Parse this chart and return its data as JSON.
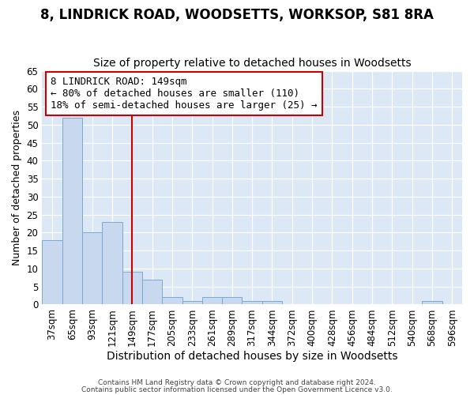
{
  "title1": "8, LINDRICK ROAD, WOODSETTS, WORKSOP, S81 8RA",
  "title2": "Size of property relative to detached houses in Woodsetts",
  "xlabel": "Distribution of detached houses by size in Woodsetts",
  "ylabel": "Number of detached properties",
  "categories": [
    "37sqm",
    "65sqm",
    "93sqm",
    "121sqm",
    "149sqm",
    "177sqm",
    "205sqm",
    "233sqm",
    "261sqm",
    "289sqm",
    "317sqm",
    "344sqm",
    "372sqm",
    "400sqm",
    "428sqm",
    "456sqm",
    "484sqm",
    "512sqm",
    "540sqm",
    "568sqm",
    "596sqm"
  ],
  "values": [
    18,
    52,
    20,
    23,
    9,
    7,
    2,
    1,
    2,
    2,
    1,
    1,
    0,
    0,
    0,
    0,
    0,
    0,
    0,
    1,
    0
  ],
  "bar_color": "#c8d8ee",
  "bar_edgecolor": "#7aaad0",
  "vline_x_index": 4,
  "vline_color": "#cc0000",
  "annotation_text": "8 LINDRICK ROAD: 149sqm\n← 80% of detached houses are smaller (110)\n18% of semi-detached houses are larger (25) →",
  "annotation_box_color": "#cc0000",
  "ylim": [
    0,
    65
  ],
  "yticks": [
    0,
    5,
    10,
    15,
    20,
    25,
    30,
    35,
    40,
    45,
    50,
    55,
    60,
    65
  ],
  "background_color": "#ffffff",
  "plot_bg_color": "#dce8f5",
  "grid_color": "#ffffff",
  "footer1": "Contains HM Land Registry data © Crown copyright and database right 2024.",
  "footer2": "Contains public sector information licensed under the Open Government Licence v3.0.",
  "title1_fontsize": 12,
  "title2_fontsize": 10,
  "xlabel_fontsize": 10,
  "ylabel_fontsize": 9,
  "tick_fontsize": 8.5,
  "ann_fontsize": 9
}
